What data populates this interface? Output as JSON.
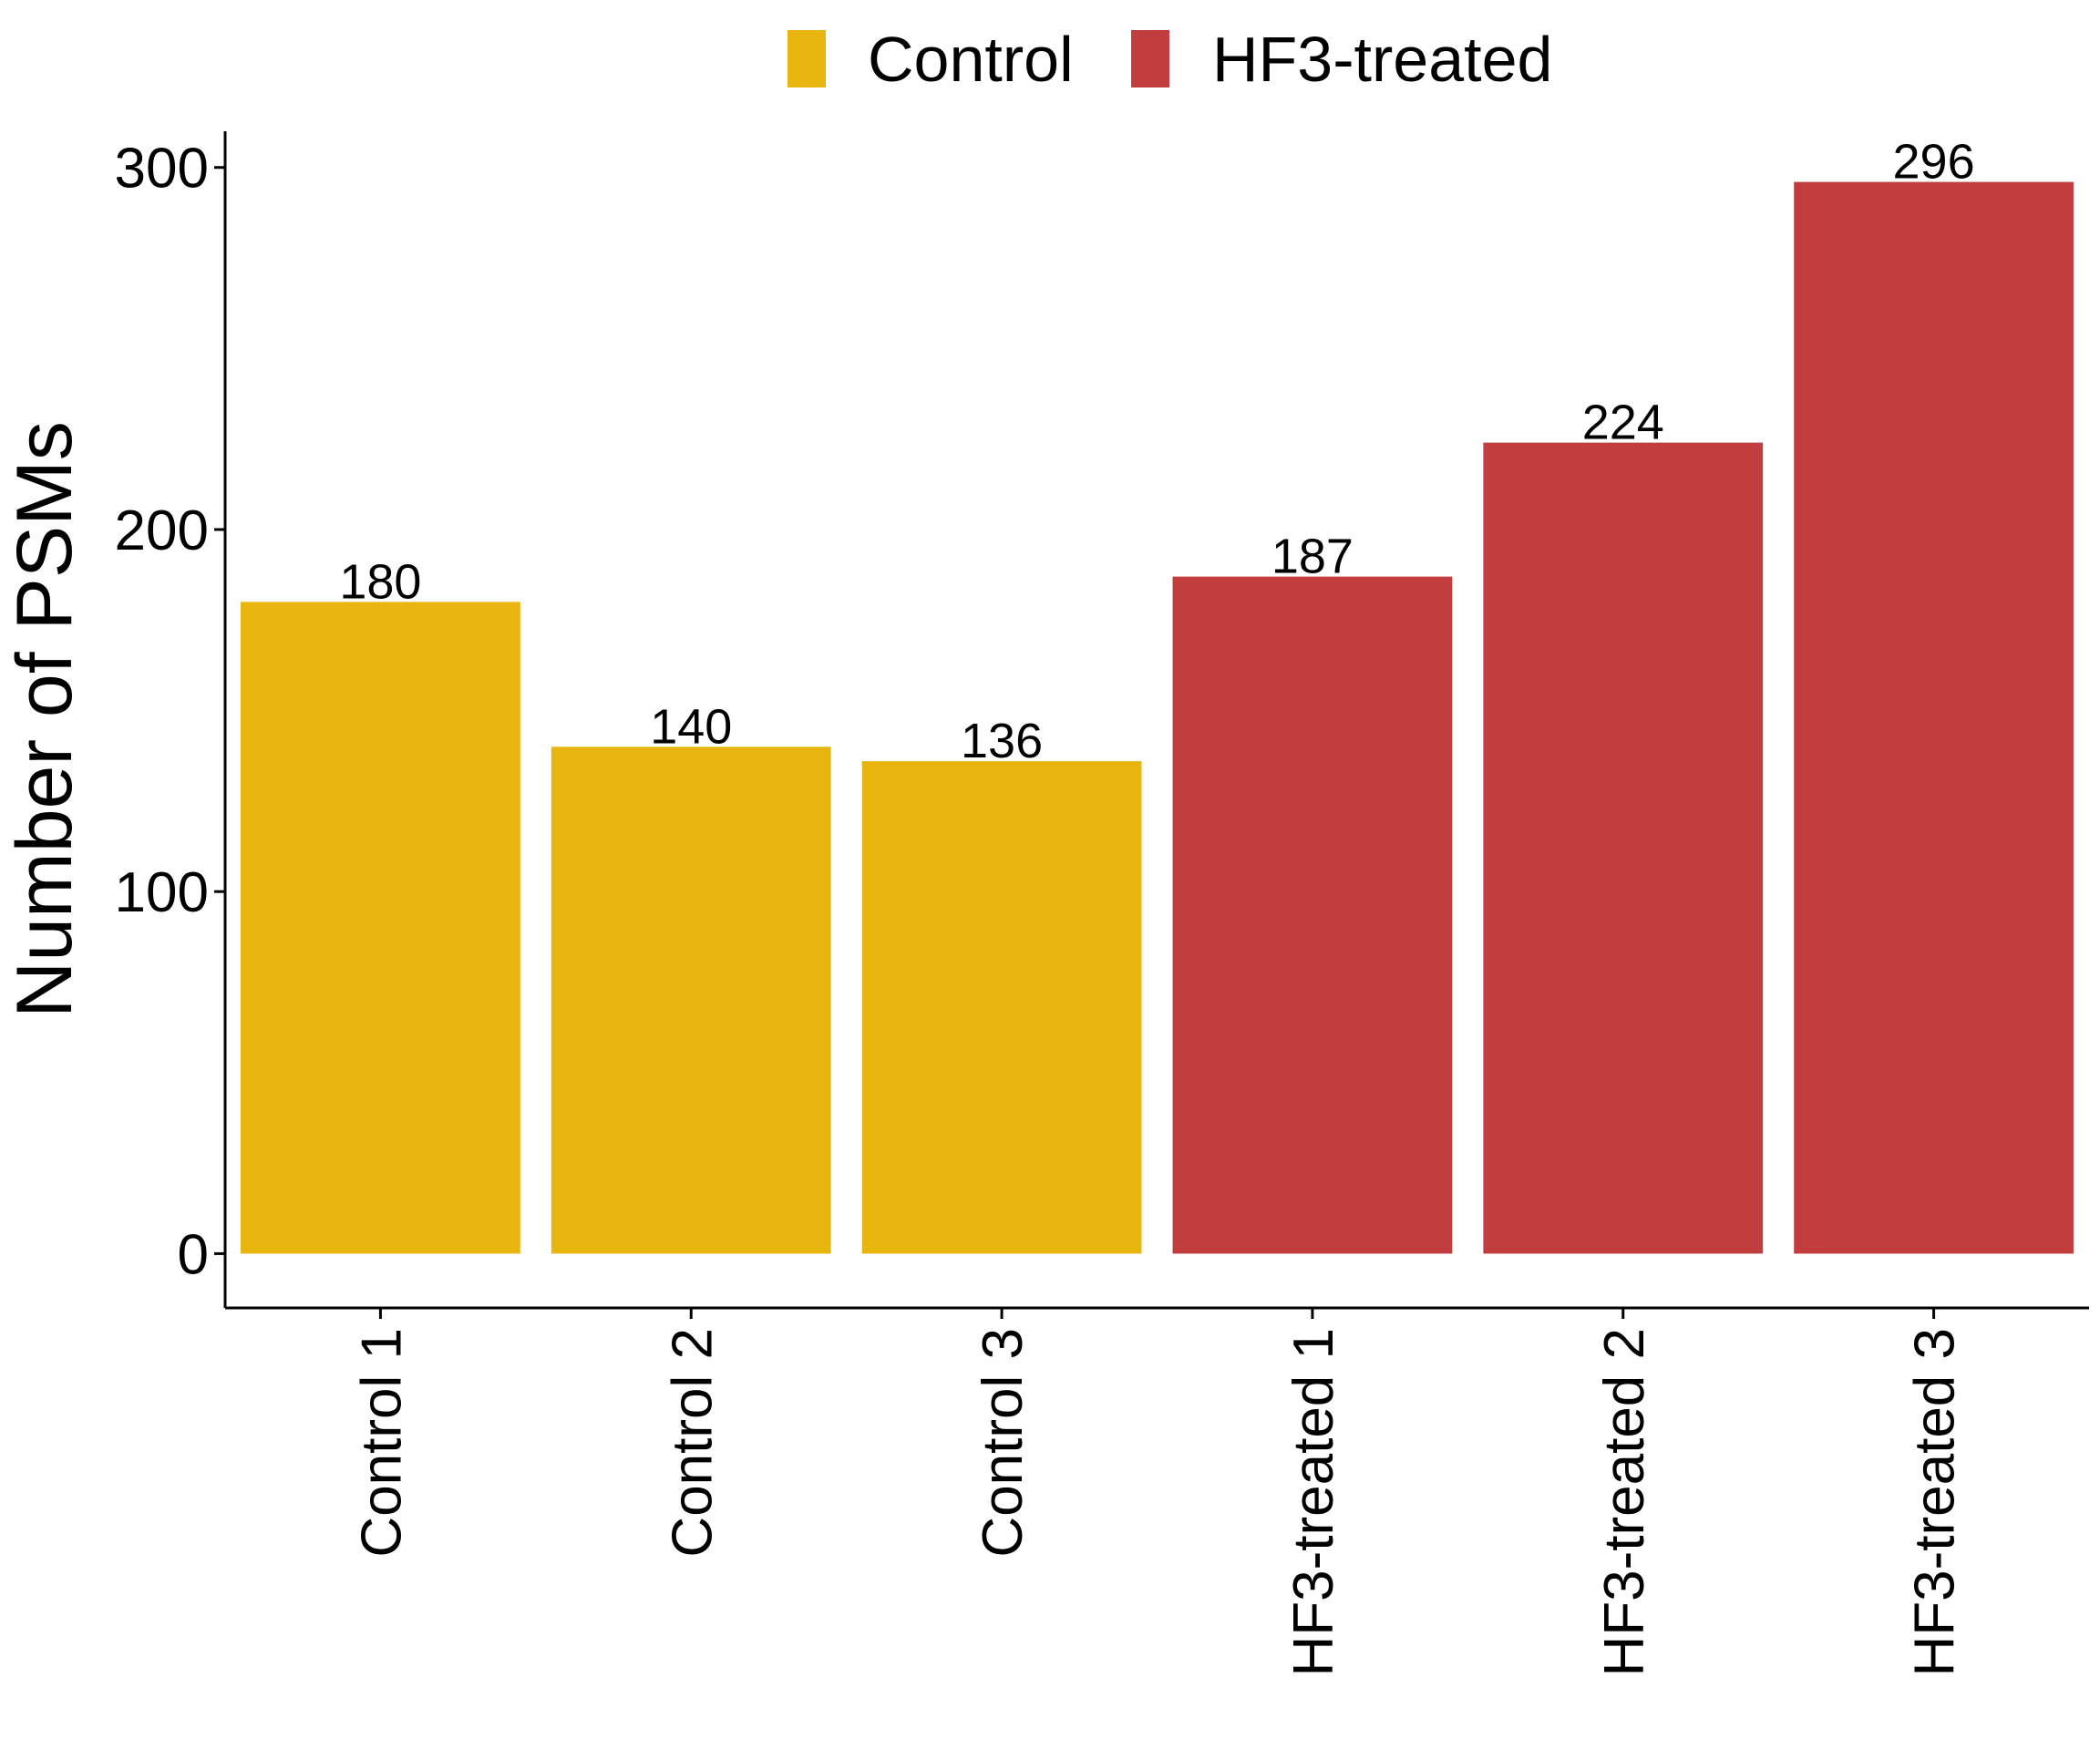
{
  "chart_data": {
    "type": "bar",
    "title": "",
    "xlabel": "",
    "ylabel": "Number of PSMs",
    "ylim": [
      -15,
      310
    ],
    "yticks": [
      0,
      100,
      200,
      300
    ],
    "grid": false,
    "legend_position": "top",
    "categories": [
      "Control 1",
      "Control 2",
      "Control 3",
      "HF3-treated 1",
      "HF3-treated 2",
      "HF3-treated 3"
    ],
    "values": [
      180,
      140,
      136,
      187,
      224,
      296
    ],
    "groups": [
      "Control",
      "Control",
      "Control",
      "HF3-treated",
      "HF3-treated",
      "HF3-treated"
    ],
    "legend": [
      {
        "name": "Control",
        "color": "#E8B40E"
      },
      {
        "name": "HF3-treated",
        "color": "#C13D3E"
      }
    ],
    "data_labels": [
      "180",
      "140",
      "136",
      "187",
      "224",
      "296"
    ]
  }
}
